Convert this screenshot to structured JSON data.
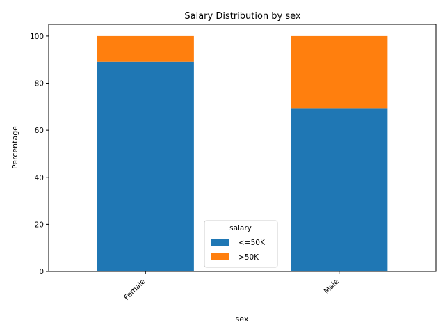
{
  "chart_data": {
    "type": "bar",
    "stacked": true,
    "title": "Salary Distribution by sex",
    "xlabel": "sex",
    "ylabel": "Percentage",
    "categories": [
      "Female",
      "Male"
    ],
    "series": [
      {
        "name": "<=50K",
        "values": [
          89.1,
          69.4
        ],
        "color": "#1f77b4"
      },
      {
        "name": ">50K",
        "values": [
          10.9,
          30.6
        ],
        "color": "#ff7f0e"
      }
    ],
    "ylim": [
      0,
      105
    ],
    "yticks": [
      0,
      20,
      40,
      60,
      80,
      100
    ],
    "legend": {
      "title": "salary",
      "placement": "lower-center"
    },
    "grid": false
  }
}
